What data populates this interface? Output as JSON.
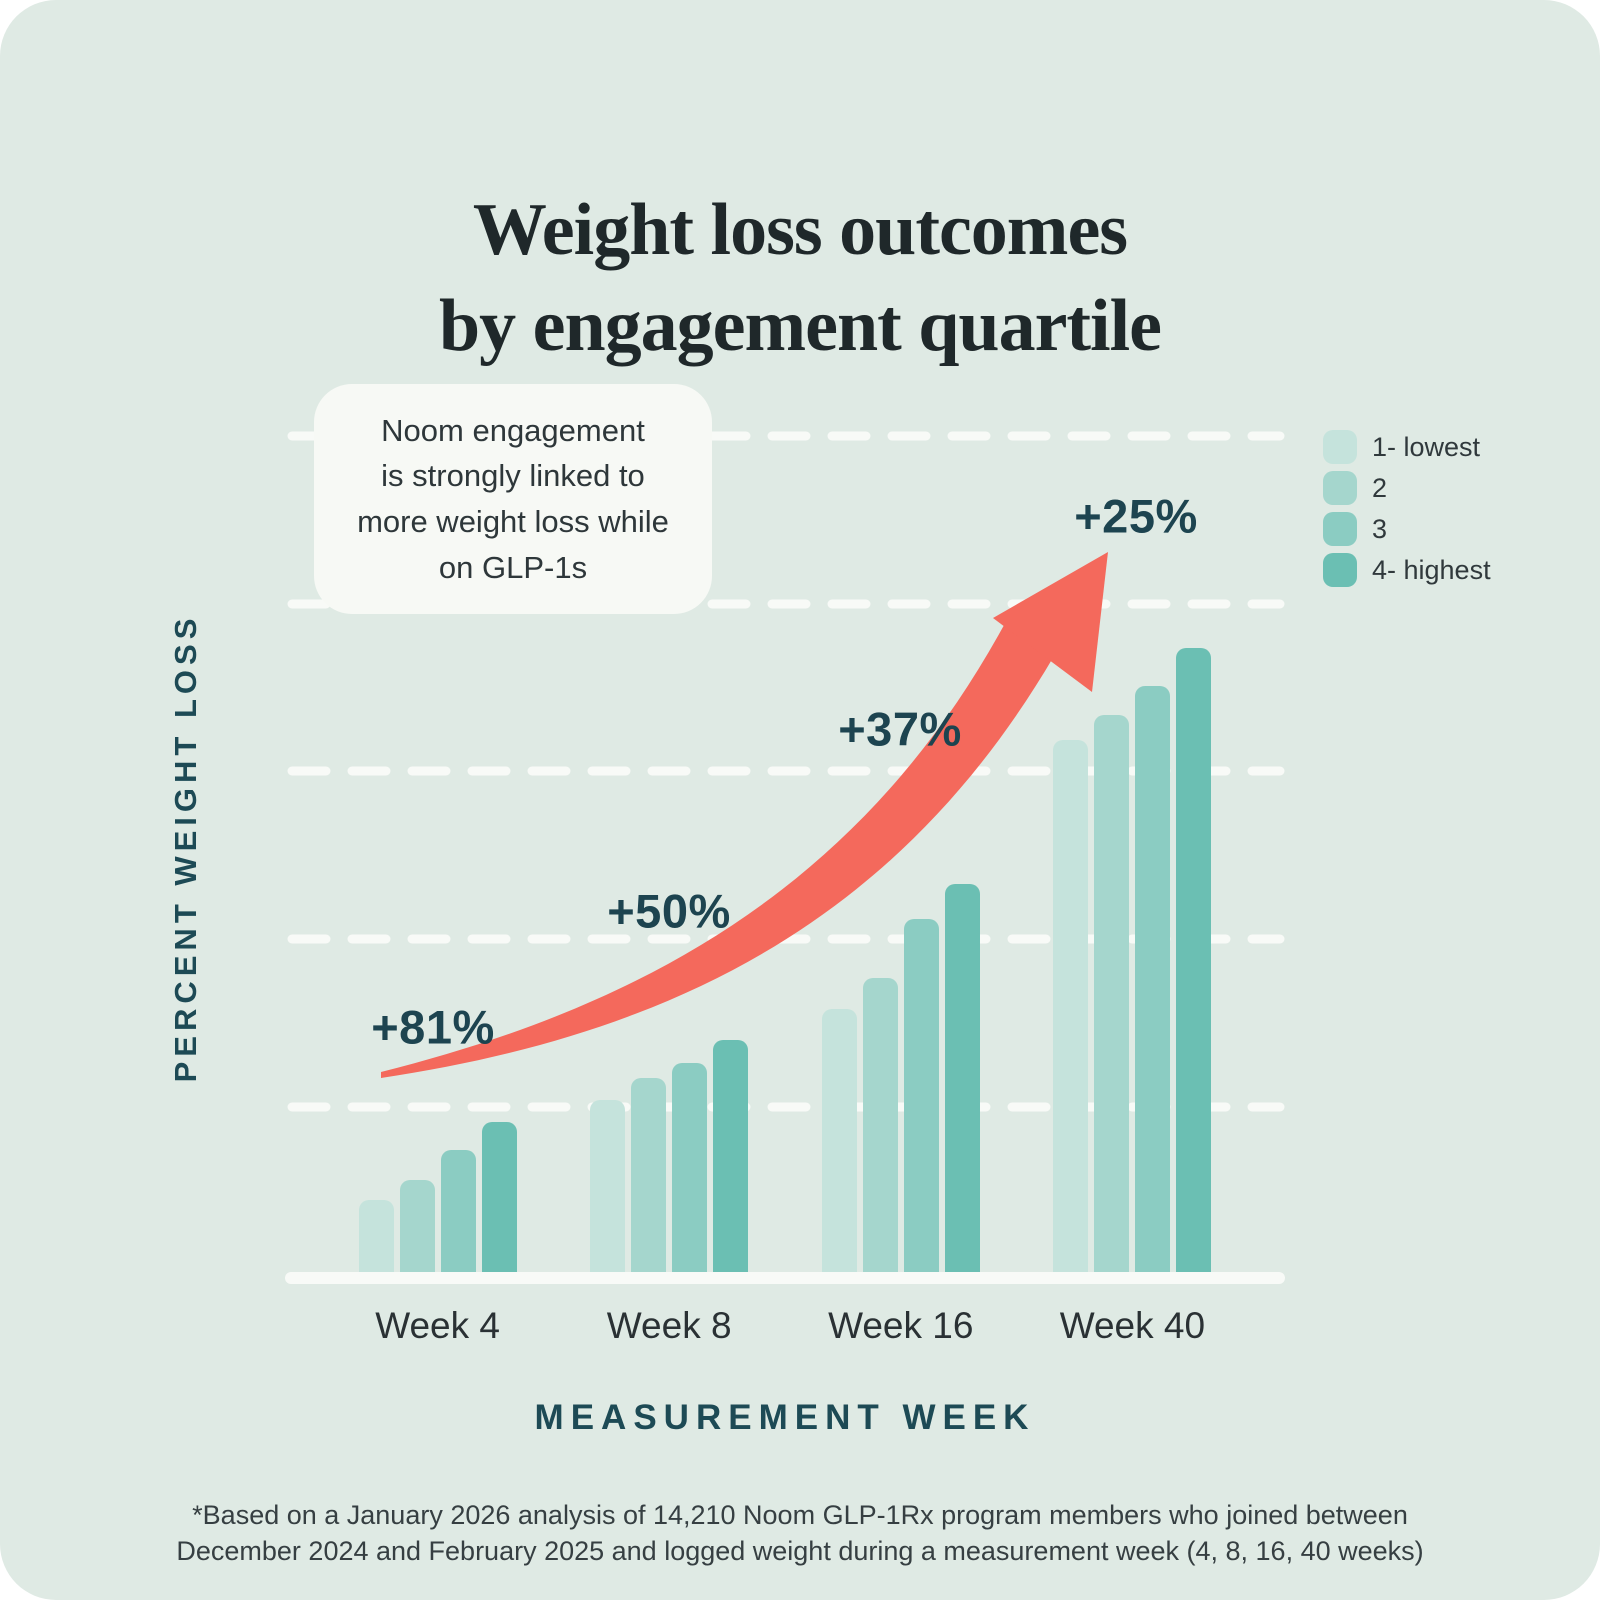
{
  "page": {
    "title_line1": "Weight loss outcomes",
    "title_line2": "by engagement quartile"
  },
  "callout_text": "Noom engagement\nis strongly linked to\nmore weight loss while\non GLP-1s",
  "footnote": "*Based on a January 2026 analysis of 14,210 Noom GLP-1Rx program members who joined between\nDecember 2024 and February 2025 and logged weight during a measurement week (4, 8, 16, 40 weeks)",
  "colors": {
    "background": "#dfeae4",
    "arrow_accent": "#f4695c",
    "dark_teal_text": "#1d4a55",
    "title_text": "#1f282a",
    "gridline": "#f8faf7",
    "baseline": "#f8faf7",
    "callout_background": "#f7f9f5"
  },
  "chart_data": {
    "type": "bar",
    "title": "Weight loss outcomes by engagement quartile",
    "xlabel": "MEASUREMENT WEEK",
    "ylabel": "PERCENT WEIGHT LOSS",
    "categories": [
      "Week 4",
      "Week 8",
      "Week 16",
      "Week 40"
    ],
    "series": [
      {
        "name": "1- lowest",
        "color": "#c5e3dc",
        "values": [
          0.44,
          1.04,
          1.58,
          3.19
        ]
      },
      {
        "name": "2",
        "color": "#a5d6cd",
        "values": [
          0.56,
          1.17,
          1.77,
          3.34
        ]
      },
      {
        "name": "3",
        "color": "#8bccc2",
        "values": [
          0.74,
          1.26,
          2.12,
          3.51
        ]
      },
      {
        "name": "4- highest",
        "color": "#6bbfb3",
        "values": [
          0.91,
          1.4,
          2.33,
          3.74
        ]
      }
    ],
    "values_unit": "relative bar height in dashed-gridline intervals (y axis has no numeric tick labels)",
    "ylim": [
      0,
      5
    ],
    "grid": "5 horizontal white dashed gridlines, unlabeled",
    "legend_position": "upper right",
    "annotations": [
      {
        "label": "+81%",
        "category": "Week 4"
      },
      {
        "label": "+50%",
        "category": "Week 8"
      },
      {
        "label": "+37%",
        "category": "Week 16"
      },
      {
        "label": "+25%",
        "category": "Week 40"
      }
    ],
    "annotation_marker": "coral curved arrow rising from Week 4 toward +25% at Week 40"
  }
}
